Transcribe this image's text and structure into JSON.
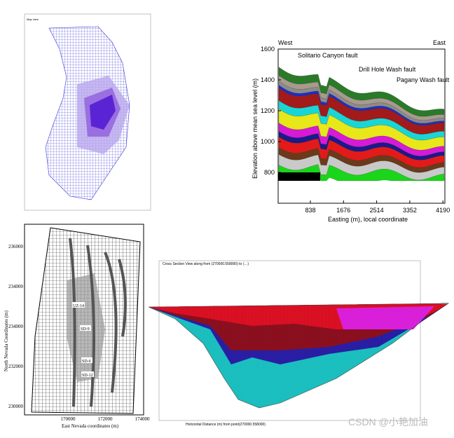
{
  "map_view": {
    "caption": "Map view"
  },
  "cross_section": {
    "west": "West",
    "east": "East",
    "faults": [
      "Solitario Canyon fault",
      "Drill Hole Wash fault",
      "Pagany Wash fault"
    ],
    "y_label": "Elevation above mean sea level  (m)",
    "x_label": "Easting (m), local coordinate",
    "yticks": [
      "1600",
      "1400",
      "1200",
      "1000",
      "800"
    ],
    "xticks": [
      "838",
      "1676",
      "2514",
      "3352",
      "4190"
    ]
  },
  "site_map": {
    "y_label": "North Nevada Coordinates (m)",
    "x_label": "East Nevada coordinates (m)",
    "yticks": [
      "236000",
      "234000",
      "234000",
      "232000",
      "230000"
    ],
    "xticks": [
      "170000",
      "172000",
      "174000"
    ],
    "wells": [
      "UZ-14",
      "SD-9",
      "SD-6",
      "SD-12"
    ]
  },
  "section_view": {
    "title": "Cross Section View along from (270000.558000) to (…)",
    "x_label": "Horizontal Distance (m) from point(270000.558000)"
  },
  "watermark": "CSDN @小艳加油"
}
